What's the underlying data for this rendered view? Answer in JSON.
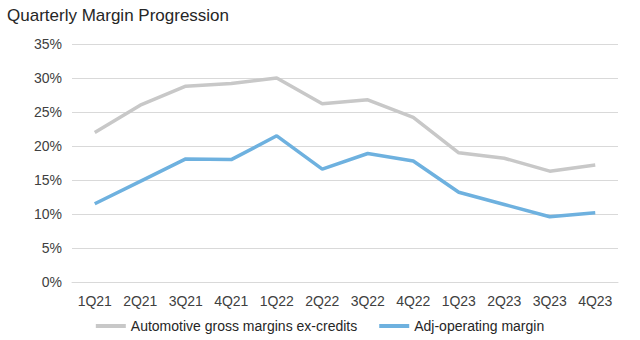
{
  "chart_data": {
    "type": "line",
    "title": "Quarterly Margin Progression",
    "categories": [
      "1Q21",
      "2Q21",
      "3Q21",
      "4Q21",
      "1Q22",
      "2Q22",
      "3Q22",
      "4Q22",
      "1Q23",
      "2Q23",
      "3Q23",
      "4Q23"
    ],
    "series": [
      {
        "name": "Automotive gross margins ex-credits",
        "color": "#c8c8c8",
        "values": [
          22,
          26,
          28.8,
          29.2,
          30,
          26.2,
          26.8,
          24.2,
          19,
          18.2,
          16.3,
          17.2
        ]
      },
      {
        "name": "Adj-operating margin",
        "color": "#6eb1df",
        "values": [
          11.5,
          14.8,
          18.1,
          18,
          21.5,
          16.6,
          18.9,
          17.8,
          13.2,
          11.4,
          9.6,
          10.2
        ]
      }
    ],
    "ylim": [
      0,
      35
    ],
    "yticks": [
      {
        "value": 0,
        "label": "0%"
      },
      {
        "value": 5,
        "label": "5%"
      },
      {
        "value": 10,
        "label": "10%"
      },
      {
        "value": 15,
        "label": "15%"
      },
      {
        "value": 20,
        "label": "20%"
      },
      {
        "value": 25,
        "label": "25%"
      },
      {
        "value": 30,
        "label": "30%"
      },
      {
        "value": 35,
        "label": "35%"
      }
    ],
    "grid": true,
    "legend": "bottom",
    "marker": "none",
    "line_style": "solid"
  }
}
